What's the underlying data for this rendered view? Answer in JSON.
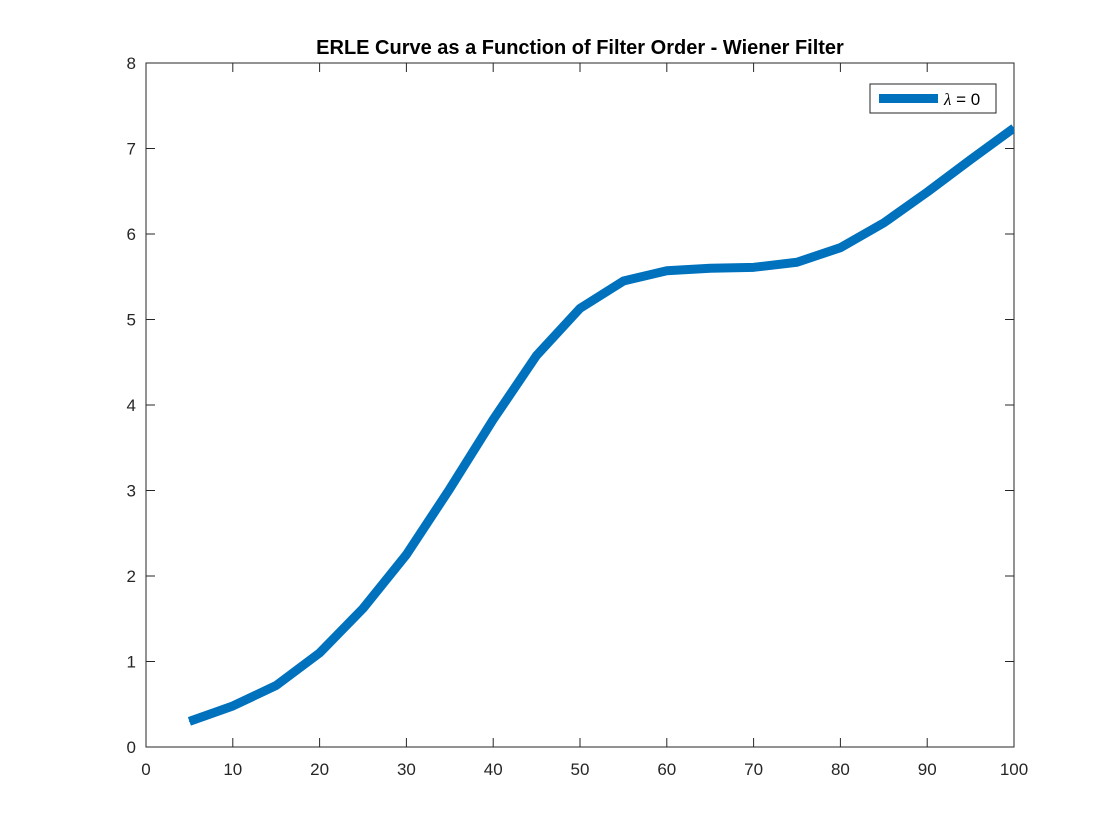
{
  "chart_data": {
    "type": "line",
    "title": "ERLE Curve as a Function of Filter Order - Wiener Filter",
    "xlabel": "",
    "ylabel": "",
    "xlim": [
      0,
      100
    ],
    "ylim": [
      0,
      8
    ],
    "xticks": [
      0,
      10,
      20,
      30,
      40,
      50,
      60,
      70,
      80,
      90,
      100
    ],
    "yticks": [
      0,
      1,
      2,
      3,
      4,
      5,
      6,
      7,
      8
    ],
    "grid": false,
    "legend_position": "top-right",
    "series": [
      {
        "name_symbol": "λ",
        "name_rest": " = 0",
        "color": "#0072BD",
        "x": [
          5,
          10,
          15,
          20,
          25,
          30,
          35,
          40,
          45,
          50,
          55,
          60,
          65,
          70,
          75,
          80,
          85,
          90,
          95,
          100
        ],
        "y": [
          0.3,
          0.48,
          0.72,
          1.1,
          1.62,
          2.25,
          3.02,
          3.83,
          4.58,
          5.13,
          5.45,
          5.57,
          5.6,
          5.61,
          5.67,
          5.84,
          6.13,
          6.49,
          6.87,
          7.24
        ]
      }
    ]
  }
}
